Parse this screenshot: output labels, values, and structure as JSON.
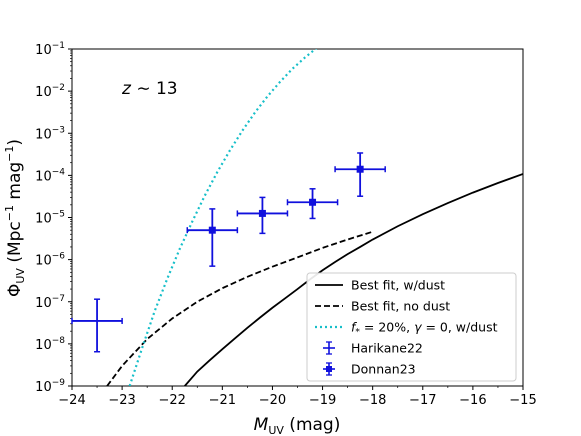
{
  "chart_data": {
    "type": "line",
    "annotation": "z ∼ 13",
    "xlabel": "M_UV (mag)",
    "ylabel": "Φ_UV (Mpc^-1 mag^-1)",
    "xlim": [
      -24,
      -15
    ],
    "ylim_log10": [
      -9,
      -1
    ],
    "y_scale": "log",
    "grid": false,
    "legend_position": "lower-right",
    "x_ticks": [
      "−24",
      "−23",
      "−22",
      "−21",
      "−20",
      "−19",
      "−18",
      "−17",
      "−16",
      "−15"
    ],
    "y_ticks": [
      {
        "base": "10",
        "exp": "−1"
      },
      {
        "base": "10",
        "exp": "−2"
      },
      {
        "base": "10",
        "exp": "−3"
      },
      {
        "base": "10",
        "exp": "−4"
      },
      {
        "base": "10",
        "exp": "−5"
      },
      {
        "base": "10",
        "exp": "−6"
      },
      {
        "base": "10",
        "exp": "−7"
      },
      {
        "base": "10",
        "exp": "−8"
      },
      {
        "base": "10",
        "exp": "−9"
      }
    ],
    "series": [
      {
        "name": "Best fit, w/dust",
        "style": "solid",
        "color": "#000000",
        "x": [
          -21.75,
          -21.5,
          -21.25,
          -21.0,
          -20.75,
          -20.5,
          -20.25,
          -20.0,
          -19.75,
          -19.5,
          -19.25,
          -19.0,
          -18.75,
          -18.5,
          -18.25,
          -18.0,
          -17.5,
          -17.0,
          -16.5,
          -16.0,
          -15.5,
          -15.0
        ],
        "y": [
          1e-09,
          2.2e-09,
          4.1e-09,
          7.5e-09,
          1.35e-08,
          2.4e-08,
          4.2e-08,
          7.2e-08,
          1.2e-07,
          2e-07,
          3.4e-07,
          5.6e-07,
          8.8e-07,
          1.35e-06,
          2e-06,
          3e-06,
          6.2e-06,
          1.2e-05,
          2.2e-05,
          3.9e-05,
          6.6e-05,
          0.000108
        ]
      },
      {
        "name": "Best fit, no dust",
        "style": "dashed",
        "color": "#000000",
        "x": [
          -23.3,
          -23.0,
          -22.5,
          -22.0,
          -21.5,
          -21.0,
          -20.5,
          -20.0,
          -19.5,
          -19.0,
          -18.5,
          -18.0
        ],
        "y": [
          1e-09,
          3e-09,
          1.3e-08,
          4e-08,
          1e-07,
          2.1e-07,
          3.9e-07,
          6.8e-07,
          1.13e-06,
          1.9e-06,
          3e-06,
          4.6e-06
        ]
      },
      {
        "name": "f* = 20%, γ = 0, w/dust",
        "style": "dotted",
        "color": "#17bfc9",
        "x": [
          -22.85,
          -22.6,
          -22.35,
          -22.1,
          -21.85,
          -21.6,
          -21.35,
          -21.1,
          -20.85,
          -20.6,
          -20.35,
          -20.1,
          -19.85,
          -19.6,
          -19.35,
          -19.1,
          -18.9,
          -18.7,
          -18.55
        ],
        "y": [
          1e-09,
          8e-09,
          6e-08,
          3.5e-07,
          1.8e-06,
          8e-06,
          3.3e-05,
          0.00012,
          0.00039,
          0.00115,
          0.0031,
          0.0075,
          0.0165,
          0.034,
          0.063,
          0.11,
          0.17,
          0.25,
          0.32
        ]
      }
    ],
    "points": [
      {
        "name": "Harikane22",
        "marker": "plus",
        "color": "#1010dd",
        "data": [
          {
            "x": -23.5,
            "y": 3.5e-08,
            "xerr": 0.5,
            "ylo": 6.5e-09,
            "yhi": 1.15e-07
          }
        ]
      },
      {
        "name": "Donnan23",
        "marker": "square",
        "color": "#1010dd",
        "data": [
          {
            "x": -21.2,
            "y": 5e-06,
            "xerr": 0.5,
            "ylo": 7e-07,
            "yhi": 1.6e-05
          },
          {
            "x": -20.2,
            "y": 1.25e-05,
            "xerr": 0.5,
            "ylo": 4.2e-06,
            "yhi": 3e-05
          },
          {
            "x": -19.2,
            "y": 2.3e-05,
            "xerr": 0.5,
            "ylo": 9.5e-06,
            "yhi": 4.8e-05
          },
          {
            "x": -18.25,
            "y": 0.00014,
            "xerr": 0.5,
            "ylo": 3.2e-05,
            "yhi": 0.00034
          }
        ]
      }
    ],
    "legend": [
      {
        "label": "Best fit, w/dust",
        "kind": "solid"
      },
      {
        "label": "Best fit, no dust",
        "kind": "dashed"
      },
      {
        "label": "f* = 20%, γ = 0, w/dust",
        "kind": "dotted"
      },
      {
        "label": "Harikane22",
        "kind": "errbar"
      },
      {
        "label": "Donnan23",
        "kind": "errbar-square"
      }
    ]
  }
}
